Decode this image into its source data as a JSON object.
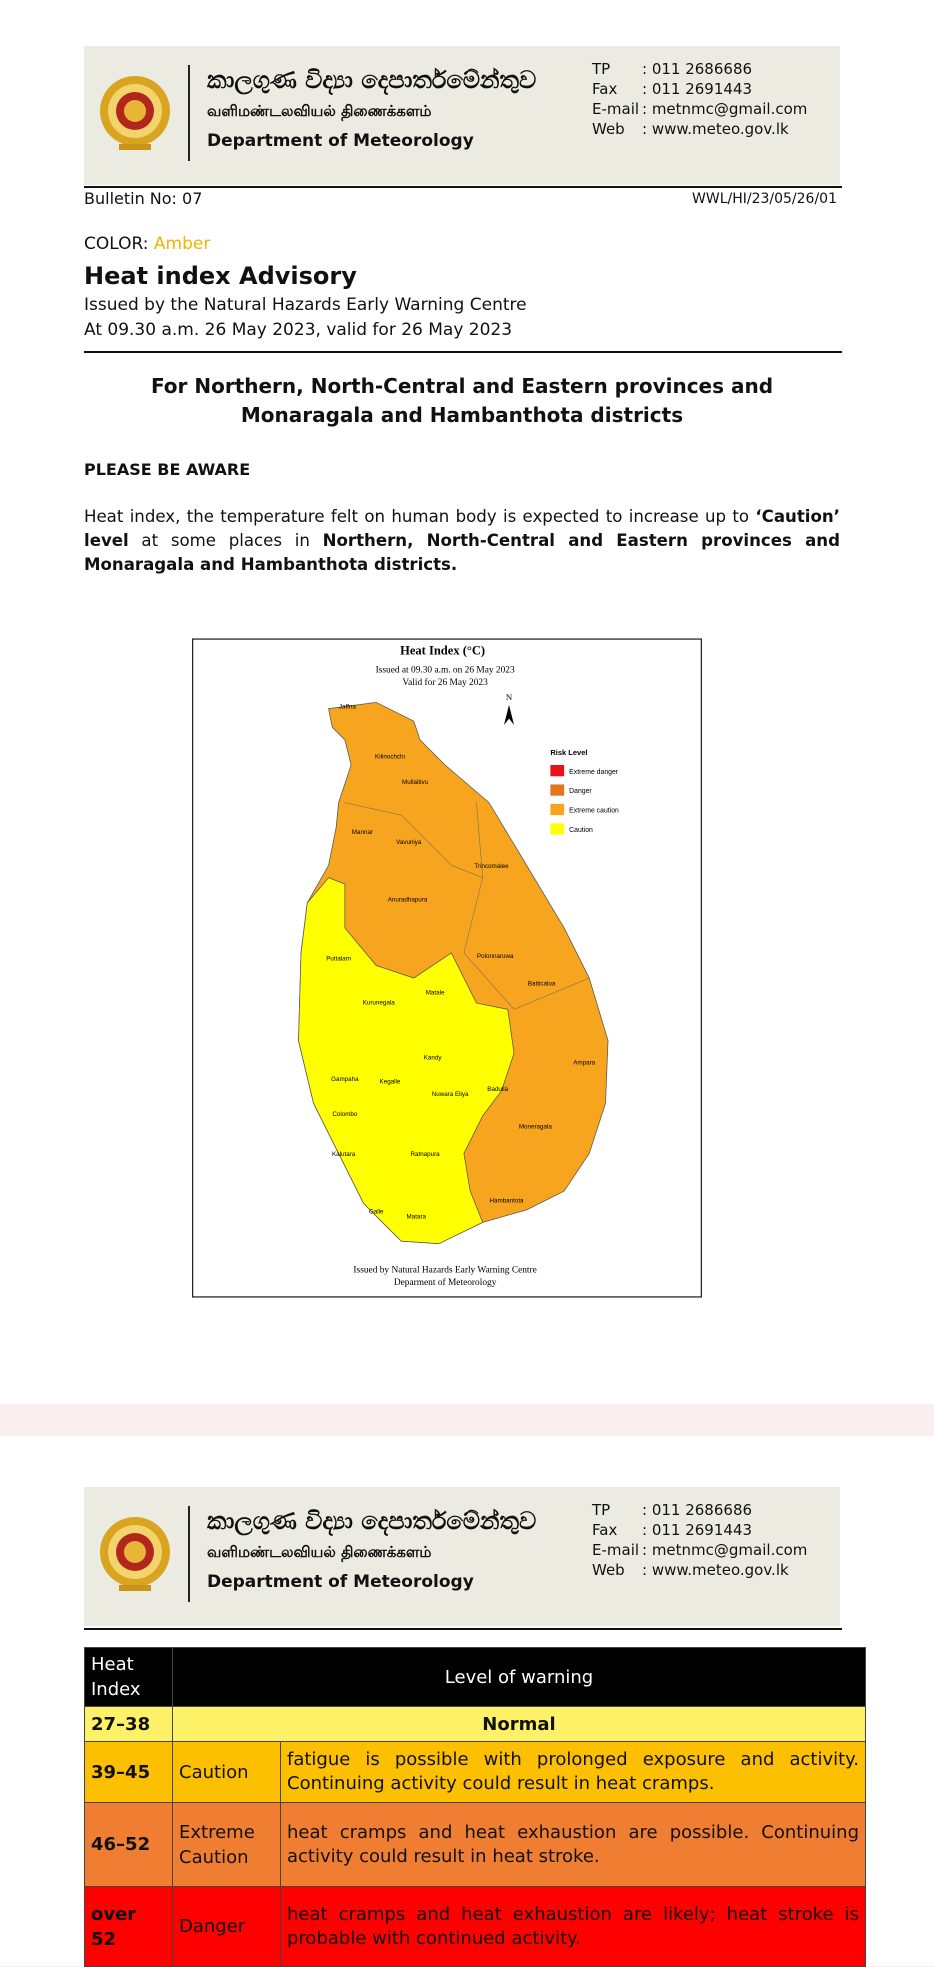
{
  "header": {
    "sinhala": "කාලගුණ විද්‍යා දෙපාර්තමේන්තුව",
    "tamil": "வளிமண்டலவியல் திணைக்களம்",
    "english": "Department of Meteorology",
    "contacts": [
      [
        "TP",
        ": 011 2686686"
      ],
      [
        "Fax",
        ": 011 2691443"
      ],
      [
        "E-mail",
        ": metnmc@gmail.com"
      ],
      [
        "Web",
        ": www.meteo.gov.lk"
      ]
    ]
  },
  "bulletin_no": "Bulletin No: 07",
  "ref": "WWL/HI/23/05/26/01",
  "color_label": "COLOR:",
  "color_value": "Amber",
  "title": "Heat index Advisory",
  "issued_by": "Issued by the Natural Hazards Early Warning Centre",
  "issued_at": "At 09.30 a.m. 26 May 2023, valid for 26 May 2023",
  "heading": "For Northern, North-Central and Eastern provinces and Monaragala and Hambanthota districts",
  "aware": "PLEASE BE AWARE",
  "paragraph": [
    "Heat index, the temperature felt on human body is expected to increase up to ",
    "‘Caution’ level",
    " at some places in ",
    "Northern, North-Central and Eastern provinces and Monaragala and Hambanthota districts."
  ],
  "map": {
    "title": "Heat Index (°C)",
    "issued": "Issued at 09.30 a.m. on 26 May 2023",
    "valid": "Valid for  26 May  2023",
    "north": "N",
    "legend_title": "Risk Level",
    "legend": [
      "Extreme danger",
      "Danger",
      "Extreme caution",
      "Caution"
    ],
    "footer": [
      "Issued by Natural Hazards Early Warning Centre",
      "Deparment of Meteorology"
    ],
    "districts": [
      "Jaffna",
      "Kilinochchi",
      "Mullaitivu",
      "Mannar",
      "Vavuniya",
      "Trincomalee",
      "Anuradhapura",
      "Puttalam",
      "Polonnaruwa",
      "Batticaloa",
      "Kurunegala",
      "Matale",
      "Kandy",
      "Ampara",
      "Gampaha",
      "Kegalle",
      "Nuwara Eliya",
      "Badulla",
      "Colombo",
      "Moneragala",
      "Kalutara",
      "Ratnapura",
      "Hambantota",
      "Galle",
      "Matara"
    ]
  },
  "table": {
    "header": [
      "Heat Index",
      "Level of warning"
    ],
    "rows": [
      [
        "27–38",
        "Normal"
      ],
      [
        "39–45",
        "Caution",
        "fatigue is possible with prolonged exposure and activity. Continuing activity could result in heat cramps."
      ],
      [
        "46–52",
        "Extreme Caution",
        "heat cramps and heat exhaustion are possible. Continuing activity could result in heat stroke."
      ],
      [
        "over 52",
        "Danger",
        "heat cramps and heat exhaustion are likely; heat stroke is probable with continued activity."
      ]
    ]
  }
}
